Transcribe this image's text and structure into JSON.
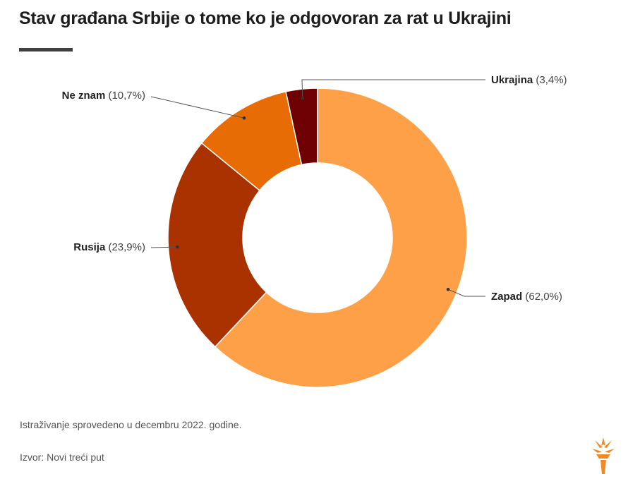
{
  "title": "Stav građana Srbije o tome ko je odgovoran za rat u Ukrajini",
  "chart_data": {
    "type": "pie",
    "title": "Stav građana Srbije o tome ko je odgovoran za rat u Ukrajini",
    "slices": [
      {
        "label": "Zapad",
        "value": 62.0,
        "value_label": "(62,0%)",
        "color": "#fda047"
      },
      {
        "label": "Rusija",
        "value": 23.9,
        "value_label": "(23,9%)",
        "color": "#a93200"
      },
      {
        "label": "Ne znam",
        "value": 10.7,
        "value_label": "(10,7%)",
        "color": "#e86c06"
      },
      {
        "label": "Ukrajina",
        "value": 3.4,
        "value_label": "(3,4%)",
        "color": "#6e0003"
      }
    ]
  },
  "notes": {
    "survey": "Istraživanje sprovedeno u decembru 2022. godine.",
    "source": "Izvor: Novi treći put"
  },
  "logo_icon": "torch-icon"
}
